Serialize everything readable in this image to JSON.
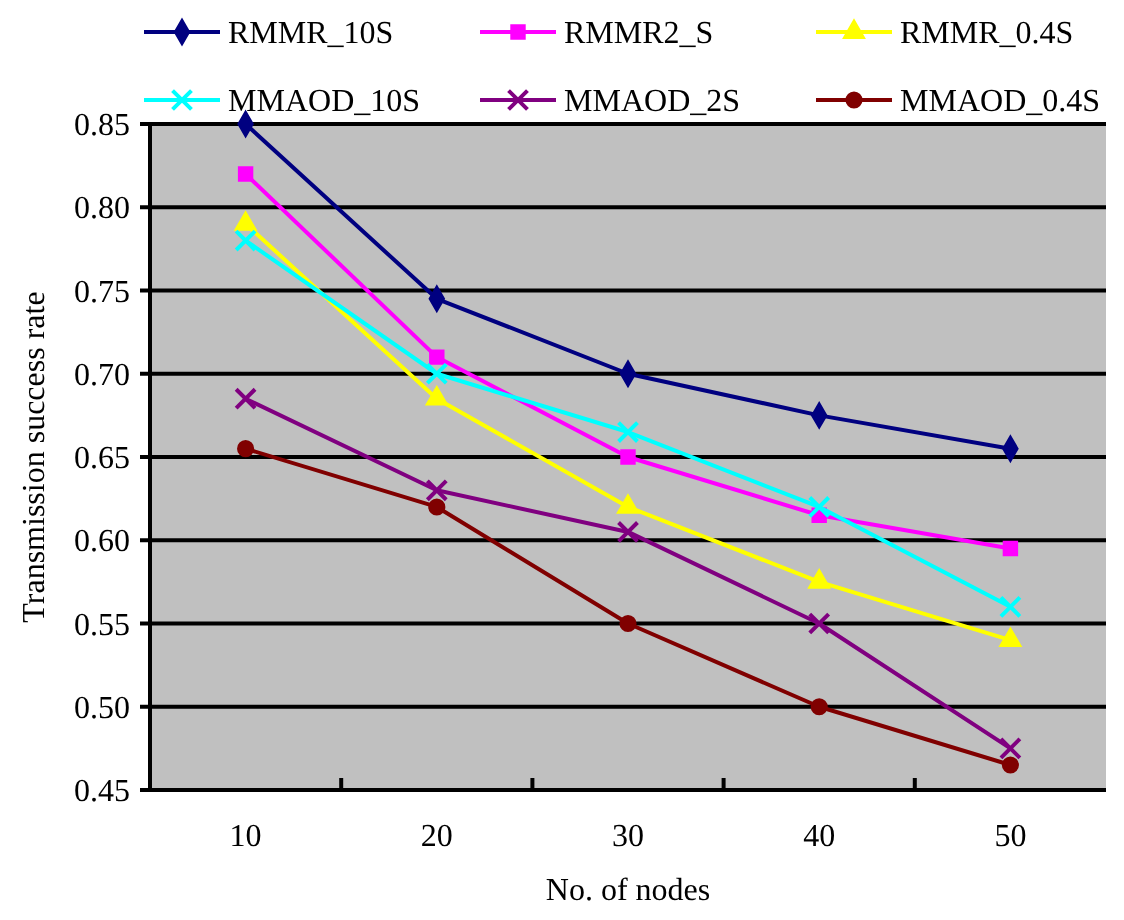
{
  "chart_data": {
    "type": "line",
    "xlabel": "No. of nodes",
    "ylabel": "Transmission success rate",
    "categories": [
      "10",
      "20",
      "30",
      "40",
      "50"
    ],
    "ylim": [
      0.45,
      0.85
    ],
    "yticks": [
      0.45,
      {
        "value": 0.5,
        "label": "0.50"
      },
      0.55,
      {
        "value": 0.6,
        "label": "0.60"
      },
      0.65,
      {
        "value": 0.7,
        "label": "0.70"
      },
      0.75,
      {
        "value": 0.8,
        "label": "0.80"
      },
      0.85
    ],
    "grid": "y",
    "legend": "top",
    "line_style": "solid",
    "series": [
      {
        "name": "RMMR_10S",
        "color": "#000080",
        "marker": "diamond",
        "values": [
          0.85,
          0.745,
          0.7,
          0.675,
          0.655
        ]
      },
      {
        "name": "RMMR2_S",
        "color": "#ff00ff",
        "marker": "square",
        "values": [
          0.82,
          0.71,
          0.65,
          0.615,
          0.595
        ]
      },
      {
        "name": "RMMR_0.4S",
        "color": "#ffff00",
        "marker": "triangle",
        "values": [
          0.79,
          0.685,
          0.62,
          0.575,
          0.54
        ]
      },
      {
        "name": "MMAOD_10S",
        "color": "#00ffff",
        "marker": "cross",
        "values": [
          0.78,
          0.7,
          0.665,
          0.62,
          0.56
        ]
      },
      {
        "name": "MMAOD_2S",
        "color": "#800080",
        "marker": "cross",
        "values": [
          0.685,
          0.63,
          0.605,
          0.55,
          0.475
        ]
      },
      {
        "name": "MMAOD_0.4S",
        "color": "#800000",
        "marker": "circle",
        "values": [
          0.655,
          0.62,
          0.55,
          0.5,
          0.465
        ]
      }
    ]
  }
}
